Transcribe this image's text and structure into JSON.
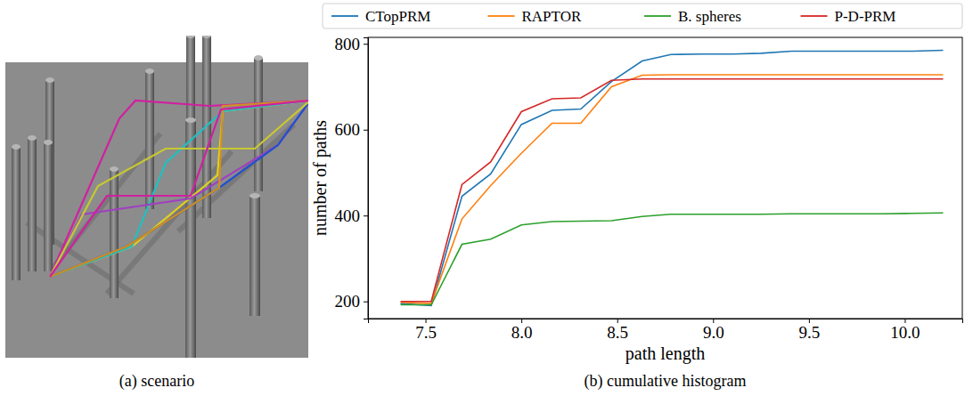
{
  "scenario": {
    "title": "(a) scenario"
  },
  "chart_data": {
    "type": "line",
    "title": "(b) cumulative histogram",
    "x_label": "path length",
    "y_label": "number of paths",
    "legend": "top",
    "grid": false,
    "x": [
      7.37,
      7.53,
      7.69,
      7.84,
      8.0,
      8.16,
      8.31,
      8.47,
      8.63,
      8.78,
      8.94,
      9.1,
      9.25,
      9.41,
      9.57,
      9.73,
      9.88,
      10.04,
      10.2
    ],
    "xlim": [
      7.2,
      10.3
    ],
    "xticks": [
      7.5,
      {
        "value": 8,
        "label": "8.0"
      },
      8.5,
      {
        "value": 9,
        "label": "9.0"
      },
      9.5,
      {
        "value": 10,
        "label": "10.0"
      }
    ],
    "ylim": [
      160,
      815
    ],
    "yticks": [
      200,
      400,
      600,
      800
    ],
    "series": [
      {
        "name": "CTopPRM",
        "color": "#1f77b4",
        "values": [
          195,
          190,
          445,
          497,
          612,
          645,
          648,
          712,
          760,
          775,
          776,
          776,
          778,
          783,
          783,
          783,
          783,
          783,
          785
        ]
      },
      {
        "name": "RAPTOR",
        "color": "#ff7f0e",
        "values": [
          198,
          195,
          392,
          470,
          545,
          615,
          615,
          700,
          727,
          728,
          728,
          728,
          728,
          728,
          728,
          728,
          728,
          728,
          728
        ]
      },
      {
        "name": "B. spheres",
        "color": "#2ca02c",
        "values": [
          192,
          192,
          333,
          345,
          378,
          386,
          387,
          388,
          398,
          403,
          403,
          403,
          403,
          404,
          404,
          404,
          404,
          405,
          406
        ]
      },
      {
        "name": "P-D-PRM",
        "color": "#d62728",
        "values": [
          200,
          200,
          472,
          525,
          642,
          672,
          674,
          715,
          718,
          718,
          718,
          718,
          718,
          718,
          718,
          718,
          718,
          718,
          718
        ]
      }
    ]
  }
}
